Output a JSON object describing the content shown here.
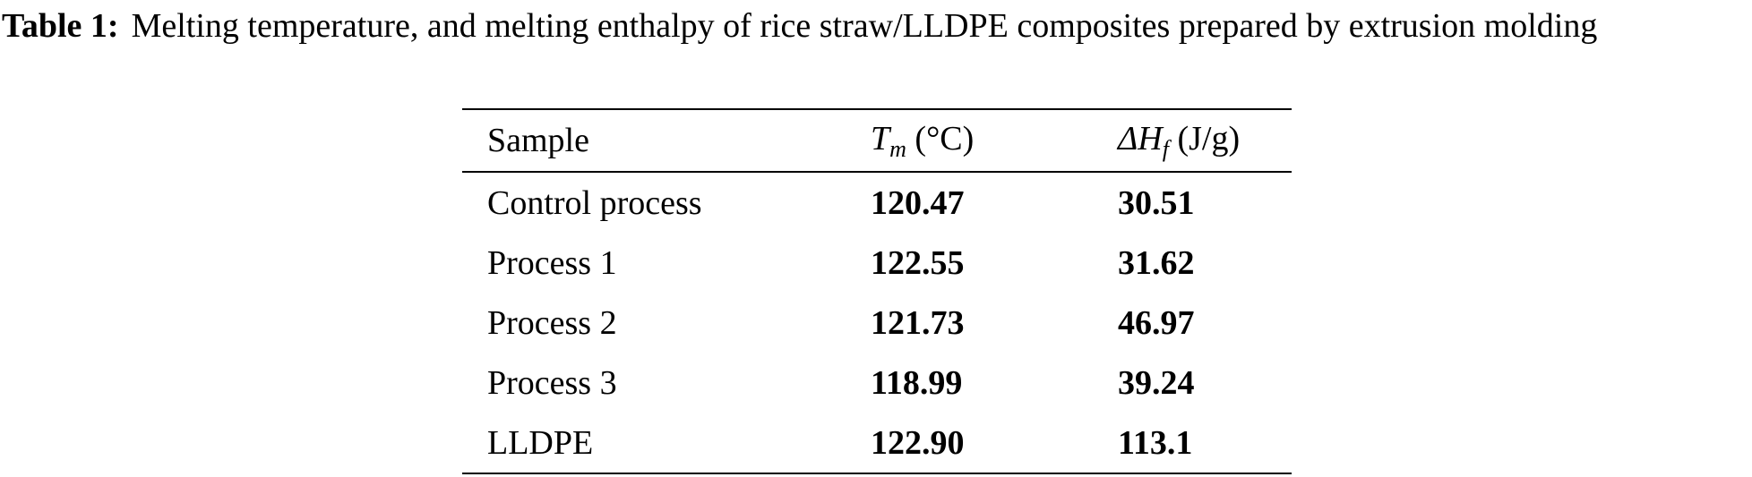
{
  "caption": {
    "label": "Table 1:",
    "text": "Melting temperature, and melting enthalpy of rice straw/LLDPE composites prepared by extrusion molding"
  },
  "table": {
    "headers": {
      "sample": "Sample",
      "tm_symbol": "T",
      "tm_subscript": "m",
      "tm_unit": "(°C)",
      "hf_symbol": "ΔH",
      "hf_subscript": "f",
      "hf_unit": "(J/g)"
    },
    "rows": [
      {
        "sample": "Control process",
        "tm": "120.47",
        "hf": "30.51"
      },
      {
        "sample": "Process 1",
        "tm": "122.55",
        "hf": "31.62"
      },
      {
        "sample": "Process 2",
        "tm": "121.73",
        "hf": "46.97"
      },
      {
        "sample": "Process 3",
        "tm": "118.99",
        "hf": "39.24"
      },
      {
        "sample": "LLDPE",
        "tm": "122.90",
        "hf": "113.1"
      }
    ]
  }
}
